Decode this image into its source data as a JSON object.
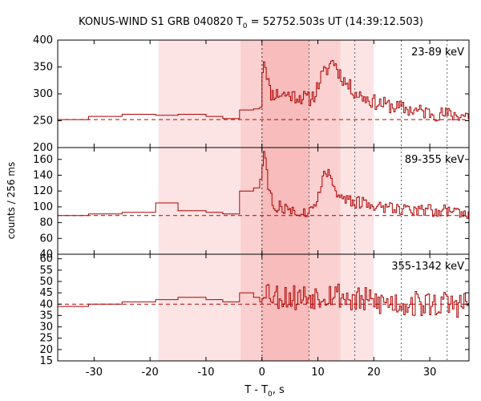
{
  "figure": {
    "title_prefix": "KONUS-WIND S1 GRB 040820 T",
    "title_sub": "0",
    "title_suffix": " = 52752.503s UT (14:39:12.503)",
    "xlabel_prefix": "T - T",
    "xlabel_sub": "0",
    "xlabel_suffix": ", s",
    "ylabel": "counts / 256 ms"
  },
  "colors": {
    "series": "#b00000",
    "background_line": "#b00000",
    "shade_light": "#fde4e4",
    "shade_mid": "#fbd0d0",
    "shade_dark": "#f8bcbc",
    "axes": "#000000"
  },
  "chart_data": [
    {
      "type": "line",
      "step": true,
      "panel": "top",
      "label": "23-89 keV",
      "xlim": [
        -36.5,
        37
      ],
      "ylim": [
        200,
        400
      ],
      "yticks": [
        200,
        250,
        300,
        350,
        400
      ],
      "xticks": [
        -30,
        -20,
        -10,
        0,
        10,
        20,
        30
      ],
      "background_level": 252,
      "vertical_lines": [
        0,
        8.4,
        16.6,
        24.9,
        33.1
      ],
      "shaded_regions": [
        {
          "x0": -18.5,
          "x1": 20.0,
          "tone": "light"
        },
        {
          "x0": -3.8,
          "x1": 14.0,
          "tone": "mid"
        },
        {
          "x0": 0.0,
          "x1": 8.4,
          "tone": "dark"
        }
      ],
      "seed": 11,
      "coarse_bins": [
        [
          -36.5,
          -31,
          252
        ],
        [
          -31,
          -25,
          258
        ],
        [
          -25,
          -19,
          262
        ],
        [
          -19,
          -15,
          260
        ],
        [
          -15,
          -10,
          262
        ],
        [
          -10,
          -7,
          258
        ],
        [
          -7,
          -4,
          254
        ],
        [
          -4,
          -1.5,
          270
        ],
        [
          -1.5,
          -0.4,
          272
        ],
        [
          -0.4,
          0,
          275
        ]
      ],
      "profile_points": [
        [
          0,
          330
        ],
        [
          0.3,
          370
        ],
        [
          0.8,
          345
        ],
        [
          1.5,
          300
        ],
        [
          3,
          300
        ],
        [
          5,
          298
        ],
        [
          7,
          294
        ],
        [
          8.5,
          290
        ],
        [
          9.5,
          300
        ],
        [
          10.5,
          330
        ],
        [
          12,
          350
        ],
        [
          12.7,
          365
        ],
        [
          13.5,
          345
        ],
        [
          15,
          320
        ],
        [
          17,
          300
        ],
        [
          20,
          285
        ],
        [
          24,
          275
        ],
        [
          28,
          268
        ],
        [
          32,
          262
        ],
        [
          37,
          260
        ]
      ],
      "noise": 14,
      "fine_bin": 0.256
    },
    {
      "type": "line",
      "step": true,
      "panel": "middle",
      "label": "89-355 keV",
      "xlim": [
        -36.5,
        37
      ],
      "ylim": [
        40,
        175
      ],
      "yticks": [
        40,
        60,
        80,
        100,
        120,
        140,
        160
      ],
      "xticks": [
        -30,
        -20,
        -10,
        0,
        10,
        20,
        30
      ],
      "background_level": 89,
      "vertical_lines": [
        0,
        8.4,
        16.6,
        24.9,
        33.1
      ],
      "shaded_regions": [
        {
          "x0": -18.5,
          "x1": 20.0,
          "tone": "light"
        },
        {
          "x0": -3.8,
          "x1": 14.0,
          "tone": "mid"
        },
        {
          "x0": 0.0,
          "x1": 8.4,
          "tone": "dark"
        }
      ],
      "seed": 27,
      "coarse_bins": [
        [
          -36.5,
          -31,
          89
        ],
        [
          -31,
          -25,
          91
        ],
        [
          -25,
          -19,
          93
        ],
        [
          -19,
          -15,
          105
        ],
        [
          -15,
          -10,
          95
        ],
        [
          -10,
          -7,
          93
        ],
        [
          -7,
          -4,
          91
        ],
        [
          -4,
          -1.5,
          120
        ],
        [
          -1.5,
          -0.4,
          124
        ],
        [
          -0.4,
          0,
          135
        ]
      ],
      "profile_points": [
        [
          0,
          140
        ],
        [
          0.2,
          165
        ],
        [
          0.6,
          168
        ],
        [
          1.2,
          120
        ],
        [
          2,
          102
        ],
        [
          4,
          98
        ],
        [
          6,
          95
        ],
        [
          8,
          92
        ],
        [
          9.5,
          100
        ],
        [
          10.5,
          130
        ],
        [
          11.5,
          145
        ],
        [
          12.5,
          138
        ],
        [
          13.5,
          115
        ],
        [
          15,
          108
        ],
        [
          18,
          104
        ],
        [
          22,
          100
        ],
        [
          27,
          97
        ],
        [
          32,
          95
        ],
        [
          37,
          93
        ]
      ],
      "noise": 8,
      "fine_bin": 0.256
    },
    {
      "type": "line",
      "step": true,
      "panel": "bottom",
      "label": "355-1342 keV",
      "xlim": [
        -36.5,
        37
      ],
      "ylim": [
        15,
        62
      ],
      "yticks": [
        15,
        20,
        25,
        30,
        35,
        40,
        45,
        50,
        55,
        60
      ],
      "xticks": [
        -30,
        -20,
        -10,
        0,
        10,
        20,
        30
      ],
      "background_level": 40,
      "vertical_lines": [
        0,
        8.4,
        16.6,
        24.9,
        33.1
      ],
      "shaded_regions": [
        {
          "x0": -18.5,
          "x1": 20.0,
          "tone": "light"
        },
        {
          "x0": -3.8,
          "x1": 14.0,
          "tone": "mid"
        },
        {
          "x0": 0.0,
          "x1": 8.4,
          "tone": "dark"
        }
      ],
      "seed": 53,
      "coarse_bins": [
        [
          -36.5,
          -31,
          39
        ],
        [
          -31,
          -25,
          40
        ],
        [
          -25,
          -19,
          41
        ],
        [
          -19,
          -15,
          42
        ],
        [
          -15,
          -10,
          43
        ],
        [
          -10,
          -7,
          42
        ],
        [
          -7,
          -4,
          41
        ],
        [
          -4,
          -1.5,
          45
        ],
        [
          -1.5,
          -0.4,
          43
        ],
        [
          -0.4,
          0,
          41
        ]
      ],
      "profile_points": [
        [
          0,
          44
        ],
        [
          0.4,
          48
        ],
        [
          2,
          44
        ],
        [
          6,
          43
        ],
        [
          10,
          44
        ],
        [
          13,
          45
        ],
        [
          16,
          42
        ],
        [
          20,
          41
        ],
        [
          28,
          40
        ],
        [
          37,
          40
        ]
      ],
      "noise": 6,
      "fine_bin": 0.256
    }
  ]
}
